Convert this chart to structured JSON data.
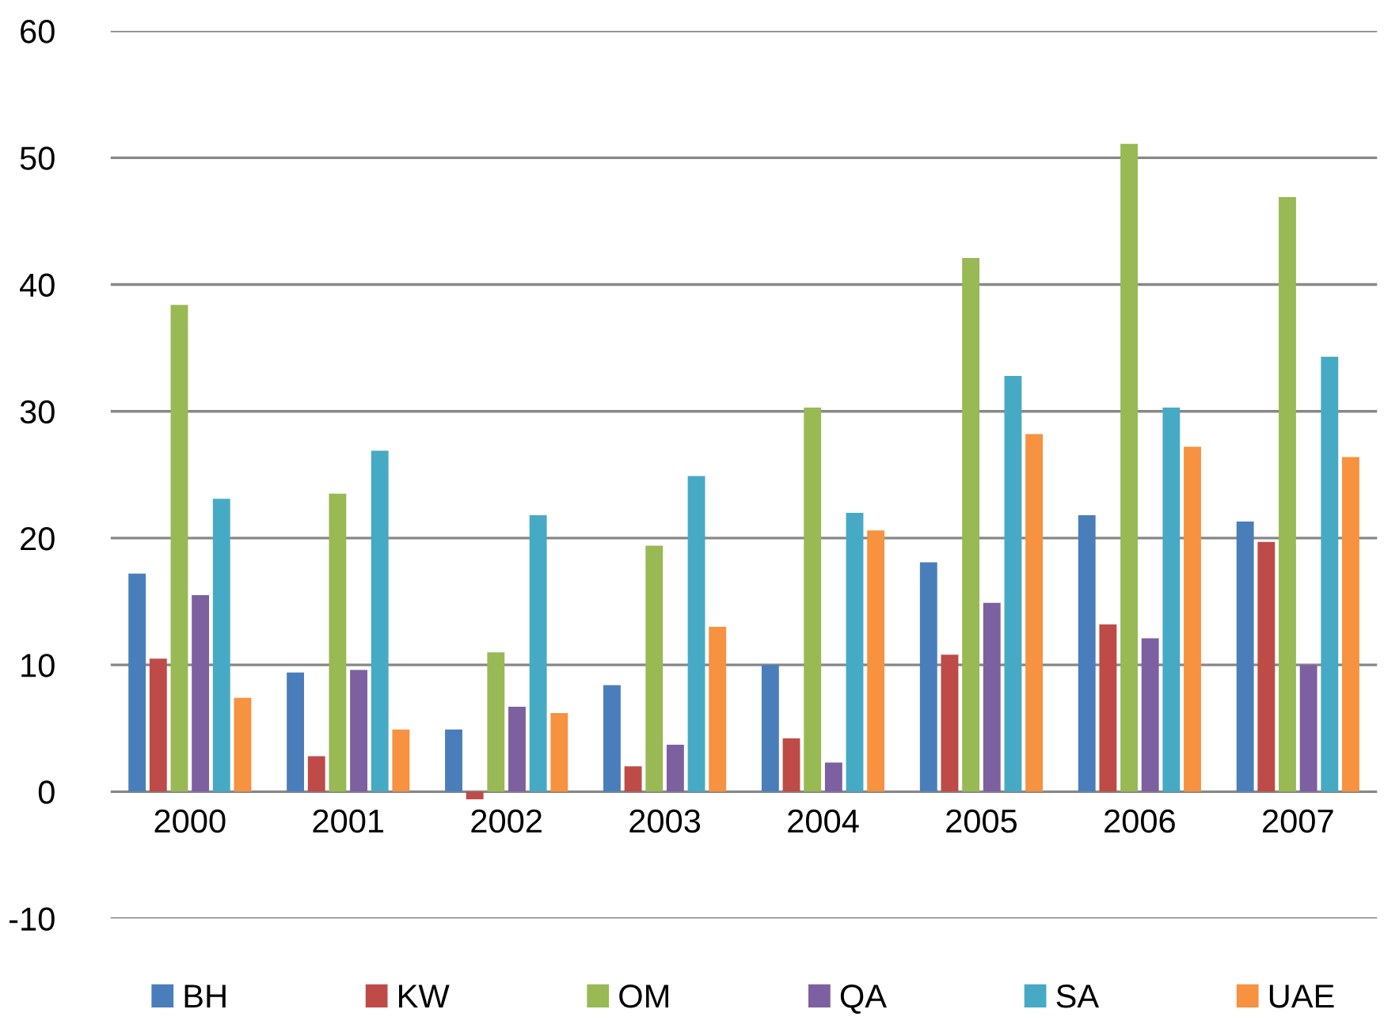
{
  "chart_data": {
    "type": "bar",
    "categories": [
      "2000",
      "2001",
      "2002",
      "2003",
      "2004",
      "2005",
      "2006",
      "2007"
    ],
    "series": [
      {
        "name": "BH",
        "color": "#4a7ebb",
        "values": [
          17.2,
          9.4,
          4.9,
          8.4,
          10.0,
          18.1,
          21.8,
          21.3
        ]
      },
      {
        "name": "KW",
        "color": "#be4b48",
        "values": [
          10.5,
          2.8,
          -0.6,
          2.0,
          4.2,
          10.8,
          13.2,
          19.7
        ]
      },
      {
        "name": "OM",
        "color": "#98b954",
        "values": [
          38.4,
          23.5,
          11.0,
          19.4,
          30.3,
          42.1,
          51.1,
          46.9
        ]
      },
      {
        "name": "QA",
        "color": "#7d60a0",
        "values": [
          15.5,
          9.6,
          6.7,
          3.7,
          2.3,
          14.9,
          12.1,
          10.0
        ]
      },
      {
        "name": "SA",
        "color": "#46aac5",
        "values": [
          23.1,
          26.9,
          21.8,
          24.9,
          22.0,
          32.8,
          30.3,
          34.3
        ]
      },
      {
        "name": "UAE",
        "color": "#f69240",
        "values": [
          7.4,
          4.9,
          6.2,
          13.0,
          20.6,
          28.2,
          27.2,
          26.4
        ]
      }
    ],
    "ylim": [
      -10,
      60
    ],
    "yticks": [
      -10,
      0,
      10,
      20,
      30,
      40,
      50,
      60
    ],
    "grid": "y",
    "legend": "bottom"
  }
}
